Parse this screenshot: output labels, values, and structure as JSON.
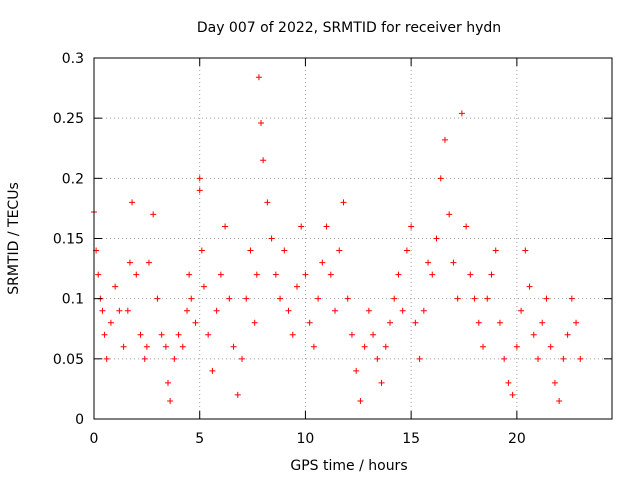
{
  "chart_data": {
    "type": "scatter",
    "title": "Day 007 of 2022, SRMTID for receiver hydn",
    "xlabel": "GPS time / hours",
    "ylabel": "SRMTID / TECUs",
    "xlim": [
      0,
      24.5
    ],
    "ylim": [
      0,
      0.3
    ],
    "x_ticks": [
      0,
      5,
      10,
      15,
      20
    ],
    "x_tick_labels": [
      "0",
      "5",
      "10",
      "15",
      "20"
    ],
    "y_ticks": [
      0,
      0.05,
      0.1,
      0.15,
      0.2,
      0.25,
      0.3
    ],
    "y_tick_labels": [
      "0",
      "0.05",
      "0.1",
      "0.15",
      "0.2",
      "0.25",
      "0.3"
    ],
    "grid": true,
    "marker": "+",
    "color": "#ff0000",
    "series": [
      {
        "name": "SRMTID",
        "x": [
          0.0,
          0.1,
          0.2,
          0.3,
          0.4,
          0.5,
          0.6,
          0.8,
          1.0,
          1.2,
          1.4,
          1.6,
          1.7,
          1.8,
          2.0,
          2.2,
          2.4,
          2.5,
          2.6,
          2.8,
          3.0,
          3.2,
          3.4,
          3.5,
          3.6,
          3.8,
          4.0,
          4.2,
          4.4,
          4.5,
          4.6,
          4.8,
          5.0,
          5.0,
          5.1,
          5.2,
          5.4,
          5.6,
          5.8,
          6.0,
          6.2,
          6.4,
          6.6,
          6.8,
          7.0,
          7.2,
          7.4,
          7.6,
          7.7,
          7.8,
          7.9,
          8.0,
          8.2,
          8.4,
          8.6,
          8.8,
          9.0,
          9.2,
          9.4,
          9.6,
          9.8,
          10.0,
          10.2,
          10.4,
          10.6,
          10.8,
          11.0,
          11.2,
          11.4,
          11.6,
          11.8,
          12.0,
          12.2,
          12.4,
          12.6,
          12.8,
          13.0,
          13.2,
          13.4,
          13.6,
          13.8,
          14.0,
          14.2,
          14.4,
          14.6,
          14.8,
          15.0,
          15.2,
          15.4,
          15.6,
          15.8,
          16.0,
          16.2,
          16.4,
          16.6,
          16.8,
          17.0,
          17.2,
          17.4,
          17.6,
          17.8,
          18.0,
          18.2,
          18.4,
          18.6,
          18.8,
          19.0,
          19.2,
          19.4,
          19.6,
          19.8,
          20.0,
          20.2,
          20.4,
          20.6,
          20.8,
          21.0,
          21.2,
          21.4,
          21.6,
          21.8,
          22.0,
          22.2,
          22.4,
          22.6,
          22.8,
          23.0
        ],
        "y": [
          0.172,
          0.14,
          0.12,
          0.1,
          0.09,
          0.07,
          0.05,
          0.08,
          0.11,
          0.09,
          0.06,
          0.09,
          0.13,
          0.18,
          0.12,
          0.07,
          0.05,
          0.06,
          0.13,
          0.17,
          0.1,
          0.07,
          0.06,
          0.03,
          0.015,
          0.05,
          0.07,
          0.06,
          0.09,
          0.12,
          0.1,
          0.08,
          0.2,
          0.19,
          0.14,
          0.11,
          0.07,
          0.04,
          0.09,
          0.12,
          0.16,
          0.1,
          0.06,
          0.02,
          0.05,
          0.1,
          0.14,
          0.08,
          0.12,
          0.284,
          0.246,
          0.215,
          0.18,
          0.15,
          0.12,
          0.1,
          0.14,
          0.09,
          0.07,
          0.11,
          0.16,
          0.12,
          0.08,
          0.06,
          0.1,
          0.13,
          0.16,
          0.12,
          0.09,
          0.14,
          0.18,
          0.1,
          0.07,
          0.04,
          0.015,
          0.06,
          0.09,
          0.07,
          0.05,
          0.03,
          0.06,
          0.08,
          0.1,
          0.12,
          0.09,
          0.14,
          0.16,
          0.08,
          0.05,
          0.09,
          0.13,
          0.12,
          0.15,
          0.2,
          0.232,
          0.17,
          0.13,
          0.1,
          0.254,
          0.16,
          0.12,
          0.1,
          0.08,
          0.06,
          0.1,
          0.12,
          0.14,
          0.08,
          0.05,
          0.03,
          0.02,
          0.06,
          0.09,
          0.14,
          0.11,
          0.07,
          0.05,
          0.08,
          0.1,
          0.06,
          0.03,
          0.015,
          0.05,
          0.07,
          0.1,
          0.08,
          0.05
        ]
      }
    ]
  }
}
